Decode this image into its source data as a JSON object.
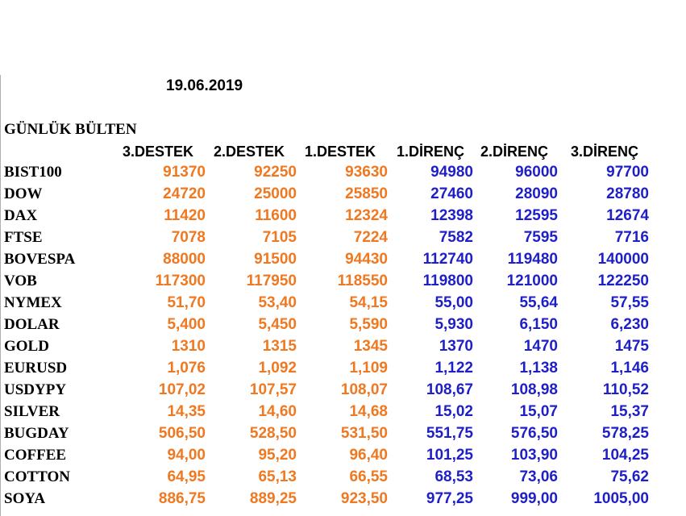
{
  "date": "19.06.2019",
  "title": "GÜNLÜK BÜLTEN",
  "headers": [
    "3.DESTEK",
    "2.DESTEK",
    "1.DESTEK",
    "1.DİRENÇ",
    "2.DİRENÇ",
    "3.DİRENÇ"
  ],
  "colors": {
    "support": "#f07820",
    "resistance": "#1f1fc8",
    "label": "#000000"
  },
  "rows": [
    {
      "name": "BIST100",
      "values": [
        "91370",
        "92250",
        "93630",
        "94980",
        "96000",
        "97700"
      ]
    },
    {
      "name": "DOW",
      "values": [
        "24720",
        "25000",
        "25850",
        "27460",
        "28090",
        "28780"
      ]
    },
    {
      "name": "DAX",
      "values": [
        "11420",
        "11600",
        "12324",
        "12398",
        "12595",
        "12674"
      ]
    },
    {
      "name": "FTSE",
      "values": [
        "7078",
        "7105",
        "7224",
        "7582",
        "7595",
        "7716"
      ]
    },
    {
      "name": "BOVESPA",
      "values": [
        "88000",
        "91500",
        "94430",
        "112740",
        "119480",
        "140000"
      ]
    },
    {
      "name": "VOB",
      "values": [
        "117300",
        "117950",
        "118550",
        "119800",
        "121000",
        "122250"
      ]
    },
    {
      "name": "NYMEX",
      "values": [
        "51,70",
        "53,40",
        "54,15",
        "55,00",
        "55,64",
        "57,55"
      ]
    },
    {
      "name": "DOLAR",
      "values": [
        "5,400",
        "5,450",
        "5,590",
        "5,930",
        "6,150",
        "6,230"
      ]
    },
    {
      "name": "GOLD",
      "values": [
        "1310",
        "1315",
        "1345",
        "1370",
        "1470",
        "1475"
      ]
    },
    {
      "name": "EURUSD",
      "values": [
        "1,076",
        "1,092",
        "1,109",
        "1,122",
        "1,138",
        "1,146"
      ]
    },
    {
      "name": "USDYPY",
      "values": [
        "107,02",
        "107,57",
        "108,07",
        "108,67",
        "108,98",
        "110,52"
      ]
    },
    {
      "name": "SILVER",
      "values": [
        "14,35",
        "14,60",
        "14,68",
        "15,02",
        "15,07",
        "15,37"
      ]
    },
    {
      "name": "BUGDAY",
      "values": [
        "506,50",
        "528,50",
        "531,50",
        "551,75",
        "576,50",
        "578,25"
      ]
    },
    {
      "name": "COFFEE",
      "values": [
        "94,00",
        "95,20",
        "96,40",
        "101,25",
        "103,90",
        "104,25"
      ]
    },
    {
      "name": "COTTON",
      "values": [
        "64,95",
        "65,13",
        "66,55",
        "68,53",
        "73,06",
        "75,62"
      ]
    },
    {
      "name": "SOYA",
      "values": [
        "886,75",
        "889,25",
        "923,50",
        "977,25",
        "999,00",
        "1005,00"
      ]
    }
  ]
}
